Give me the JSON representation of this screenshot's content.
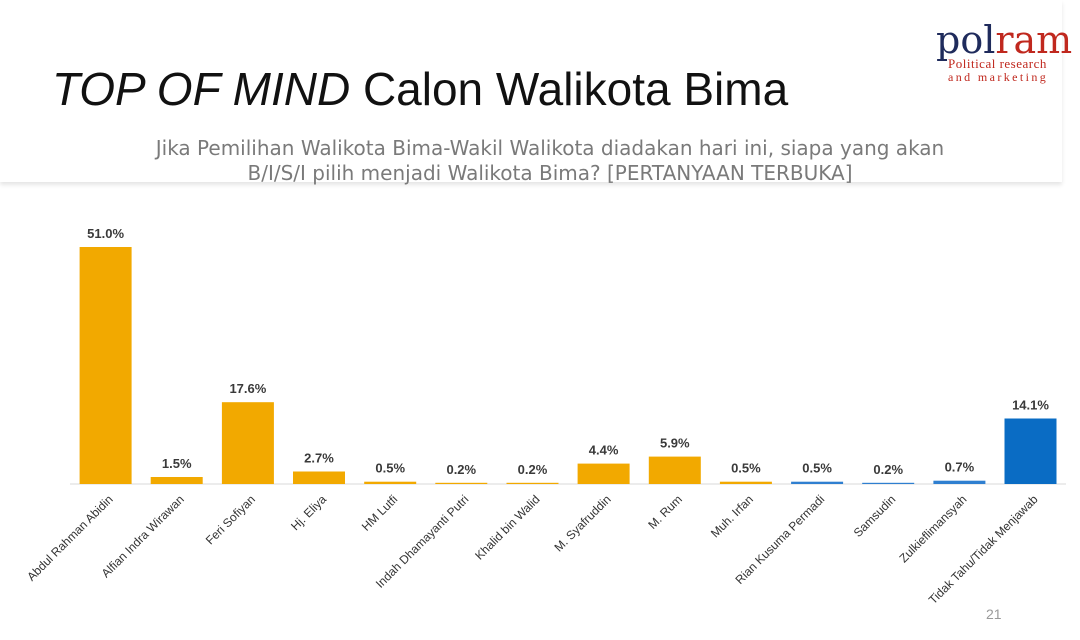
{
  "header": {
    "title_italic": "TOP OF MIND",
    "title_rest": " Calon Walikota Bima",
    "subtitle_line1": "Jika Pemilihan Walikota Bima-Wakil Walikota diadakan hari ini, siapa yang akan",
    "subtitle_line2": "B/I/S/I pilih menjadi Walikota Bima? [PERTANYAAN TERBUKA]"
  },
  "logo": {
    "word_part1": "pol",
    "word_part2": "ram",
    "tagline1": "Political research",
    "tagline2": "and marketing",
    "color_part1": "#1f2b5c",
    "color_part2": "#c0281e"
  },
  "footer": {
    "page_number": "21"
  },
  "chart_data": {
    "type": "bar",
    "categories": [
      "Abdul Rahman Abidin",
      "Alfian Indra Wirawan",
      "Feri Sofiyan",
      "Hj. Eliya",
      "HM Lutfi",
      "Indah Dhamayanti Putri",
      "Khalid bin Walid",
      "M. Syafruddin",
      "M. Rum",
      "Muh. Irfan",
      "Rian Kusuma Permadi",
      "Samsudin",
      "Zulkieflimansyah",
      "Tidak Tahu/Tidak Menjawab"
    ],
    "values": [
      51.0,
      1.5,
      17.6,
      2.7,
      0.5,
      0.2,
      0.2,
      4.4,
      5.9,
      0.5,
      0.5,
      0.2,
      0.7,
      14.1
    ],
    "labels": [
      "51.0%",
      "1.5%",
      "17.6%",
      "2.7%",
      "0.5%",
      "0.2%",
      "0.2%",
      "4.4%",
      "5.9%",
      "0.5%",
      "0.5%",
      "0.2%",
      "0.7%",
      "14.1%"
    ],
    "colors": [
      "#f2a900",
      "#f2a900",
      "#f2a900",
      "#f2a900",
      "#f2a900",
      "#f2a900",
      "#f2a900",
      "#f2a900",
      "#f2a900",
      "#f2a900",
      "#2f7fd0",
      "#2f7fd0",
      "#2f7fd0",
      "#0a6cc4"
    ],
    "ylim": [
      0,
      51
    ],
    "grid": false,
    "legend": "none"
  }
}
